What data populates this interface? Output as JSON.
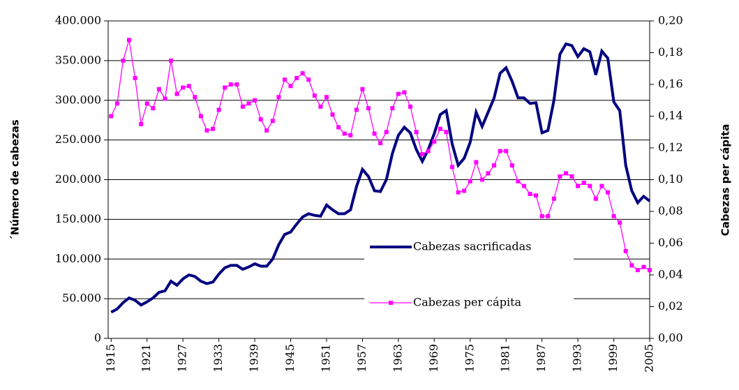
{
  "chart_data": {
    "type": "line",
    "ylabel": "´Número de cabezas",
    "y2label": "Cabezas per cápita",
    "legend": "lower right",
    "grid": true,
    "x": [
      1915,
      1916,
      1917,
      1918,
      1919,
      1920,
      1921,
      1922,
      1923,
      1924,
      1925,
      1926,
      1927,
      1928,
      1929,
      1930,
      1931,
      1932,
      1933,
      1934,
      1935,
      1936,
      1937,
      1938,
      1939,
      1940,
      1941,
      1942,
      1943,
      1944,
      1945,
      1946,
      1947,
      1948,
      1949,
      1950,
      1951,
      1952,
      1953,
      1954,
      1955,
      1956,
      1957,
      1958,
      1959,
      1960,
      1961,
      1962,
      1963,
      1964,
      1965,
      1966,
      1967,
      1968,
      1969,
      1970,
      1971,
      1972,
      1973,
      1974,
      1975,
      1976,
      1977,
      1978,
      1979,
      1980,
      1981,
      1982,
      1983,
      1984,
      1985,
      1986,
      1987,
      1988,
      1989,
      1990,
      1991,
      1992,
      1993,
      1994,
      1995,
      1996,
      1997,
      1998,
      1999,
      2000,
      2001,
      2002,
      2003,
      2004,
      2005
    ],
    "xlim": [
      1914.5,
      2005
    ],
    "xticks": [
      1915,
      1921,
      1927,
      1933,
      1939,
      1945,
      1951,
      1957,
      1963,
      1969,
      1975,
      1981,
      1987,
      1993,
      1999,
      2005
    ],
    "ylim": [
      0,
      400000
    ],
    "yticks": [
      {
        "value": 0,
        "label": "0"
      },
      {
        "value": 50000,
        "label": "50.000"
      },
      {
        "value": 100000,
        "label": "100.000"
      },
      {
        "value": 150000,
        "label": "150.000"
      },
      {
        "value": 200000,
        "label": "200.000"
      },
      {
        "value": 250000,
        "label": "250.000"
      },
      {
        "value": 300000,
        "label": "300.000"
      },
      {
        "value": 350000,
        "label": "350.000"
      },
      {
        "value": 400000,
        "label": "400.000"
      }
    ],
    "y2lim": [
      0,
      0.2
    ],
    "y2ticks": [
      {
        "value": 0,
        "label": "0,00"
      },
      {
        "value": 0.02,
        "label": "0,02"
      },
      {
        "value": 0.04,
        "label": "0,04"
      },
      {
        "value": 0.06,
        "label": "0,06"
      },
      {
        "value": 0.08,
        "label": "0,08"
      },
      {
        "value": 0.1,
        "label": "0,10"
      },
      {
        "value": 0.12,
        "label": "0,12"
      },
      {
        "value": 0.14,
        "label": "0,14"
      },
      {
        "value": 0.16,
        "label": "0,16"
      },
      {
        "value": 0.18,
        "label": "0,18"
      },
      {
        "value": 0.2,
        "label": "0,20"
      }
    ],
    "series": [
      {
        "name": "Cabezas sacrificadas",
        "color": "#000080",
        "axis": "y",
        "values": [
          33000,
          37000,
          45000,
          51000,
          48000,
          42000,
          46000,
          51000,
          58000,
          60000,
          72000,
          67000,
          75000,
          80000,
          78000,
          72000,
          69000,
          71000,
          81000,
          89000,
          92000,
          92000,
          87000,
          90000,
          94000,
          91000,
          91000,
          100000,
          118000,
          131000,
          134000,
          144000,
          153000,
          157000,
          155000,
          154000,
          168000,
          162000,
          157000,
          157000,
          162000,
          191000,
          213000,
          204000,
          186000,
          185000,
          200000,
          233000,
          256000,
          266000,
          259000,
          238000,
          223000,
          238000,
          258000,
          282000,
          287000,
          245000,
          218000,
          227000,
          247000,
          285000,
          267000,
          285000,
          303000,
          334000,
          341000,
          324000,
          303000,
          303000,
          296000,
          297000,
          259000,
          262000,
          300000,
          358000,
          371000,
          369000,
          355000,
          365000,
          361000,
          332000,
          362000,
          353000,
          298000,
          287000,
          218000,
          186000,
          171000,
          179000,
          173000
        ]
      },
      {
        "name": "Cabezas per cápita",
        "color": "#ff00ff",
        "axis": "y2",
        "values": [
          0.14,
          0.148,
          0.175,
          0.188,
          0.164,
          0.135,
          0.148,
          0.145,
          0.157,
          0.151,
          0.175,
          0.154,
          0.158,
          0.159,
          0.152,
          0.14,
          0.131,
          0.132,
          0.144,
          0.158,
          0.16,
          0.16,
          0.146,
          0.148,
          0.15,
          0.138,
          0.131,
          0.137,
          0.152,
          0.163,
          0.159,
          0.164,
          0.167,
          0.163,
          0.153,
          0.146,
          0.152,
          0.141,
          0.133,
          0.129,
          0.128,
          0.144,
          0.157,
          0.145,
          0.129,
          0.123,
          0.13,
          0.145,
          0.154,
          0.155,
          0.146,
          0.13,
          0.116,
          0.118,
          0.124,
          0.132,
          0.13,
          0.108,
          0.092,
          0.093,
          0.099,
          0.111,
          0.1,
          0.104,
          0.109,
          0.118,
          0.118,
          0.109,
          0.099,
          0.096,
          0.091,
          0.09,
          0.077,
          0.077,
          0.088,
          0.102,
          0.104,
          0.102,
          0.096,
          0.098,
          0.096,
          0.088,
          0.096,
          0.092,
          0.077,
          0.073,
          0.055,
          0.046,
          0.043,
          0.045,
          0.043
        ]
      }
    ]
  }
}
